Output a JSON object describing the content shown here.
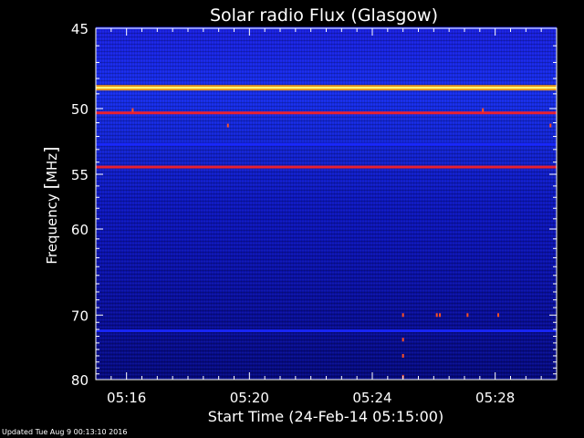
{
  "chart_data": {
    "type": "heatmap",
    "title": "Solar radio Flux (Glasgow)",
    "xlabel": "Start Time (24-Feb-14 05:15:00)",
    "ylabel_text": "Frequency ",
    "ylabel_unit": "MHz",
    "x_unit": "minutes since 05:15:00",
    "xlim": [
      0,
      15
    ],
    "ylim": [
      45,
      80
    ],
    "x_ticks": [
      {
        "value": 1,
        "label": "05:16"
      },
      {
        "value": 5,
        "label": "05:20"
      },
      {
        "value": 9,
        "label": "05:24"
      },
      {
        "value": 13,
        "label": "05:28"
      }
    ],
    "y_ticks": [
      {
        "value": 45,
        "label": "45"
      },
      {
        "value": 50,
        "label": "50"
      },
      {
        "value": 55,
        "label": "55"
      },
      {
        "value": 60,
        "label": "60"
      },
      {
        "value": 70,
        "label": "70"
      },
      {
        "value": 80,
        "label": "80"
      }
    ],
    "colormap": [
      "#000030",
      "#0000a0",
      "#1a28ff",
      "#6060ff",
      "#ff2020",
      "#ffa000",
      "#ffff80"
    ],
    "bands": [
      {
        "freq": 45.0,
        "intensity": 0.55
      },
      {
        "freq": 48.6,
        "intensity": 0.95
      },
      {
        "freq": 50.3,
        "intensity": 0.75
      },
      {
        "freq": 52.6,
        "intensity": 0.5
      },
      {
        "freq": 54.4,
        "intensity": 0.75
      },
      {
        "freq": 72.2,
        "intensity": 0.55
      }
    ]
  },
  "footer": "Updated Tue Aug  9 00:13:10 2016"
}
